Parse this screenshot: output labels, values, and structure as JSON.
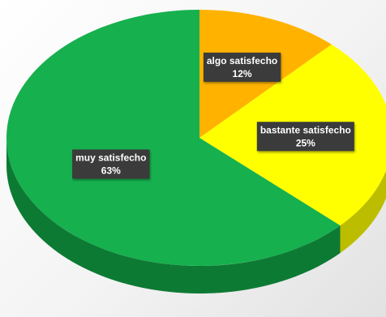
{
  "chart_data": {
    "type": "pie",
    "style": "3d",
    "title": "",
    "start_angle_deg": 0,
    "direction": "clockwise",
    "legend": "none",
    "slices": [
      {
        "name": "algo satisfecho",
        "value": 12,
        "label": "12%",
        "color": "#ffb300",
        "side_color": "#c08700"
      },
      {
        "name": "bastante satisfecho",
        "value": 25,
        "label": "25%",
        "color": "#ffff00",
        "side_color": "#bdbd00"
      },
      {
        "name": "muy satisfecho",
        "value": 63,
        "label": "63%",
        "color": "#16b04e",
        "side_color": "#0d7a34"
      }
    ]
  },
  "colors": {
    "label_background": "#3a3a3a",
    "label_text": "#ffffff"
  }
}
